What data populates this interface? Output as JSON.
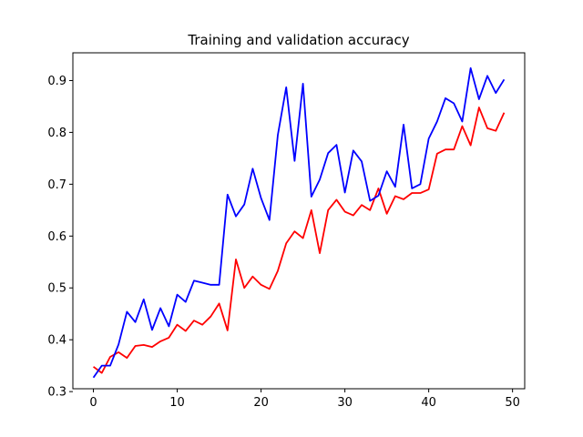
{
  "chart_data": {
    "type": "line",
    "title": "Training and validation accuracy",
    "xlabel": "",
    "ylabel": "",
    "xlim": [
      -2.45,
      51.45
    ],
    "ylim": [
      0.3055,
      0.9535
    ],
    "xticks": [
      0,
      10,
      20,
      30,
      40,
      50
    ],
    "yticks": [
      0.3,
      0.4,
      0.5,
      0.6,
      0.7,
      0.8,
      0.9
    ],
    "ytick_labels": [
      "0.3",
      "0.4",
      "0.5",
      "0.6",
      "0.7",
      "0.8",
      "0.9"
    ],
    "grid": false,
    "x": [
      0,
      1,
      2,
      3,
      4,
      5,
      6,
      7,
      8,
      9,
      10,
      11,
      12,
      13,
      14,
      15,
      16,
      17,
      18,
      19,
      20,
      21,
      22,
      23,
      24,
      25,
      26,
      27,
      28,
      29,
      30,
      31,
      32,
      33,
      34,
      35,
      36,
      37,
      38,
      39,
      40,
      41,
      42,
      43,
      44,
      45,
      46,
      47,
      48,
      49
    ],
    "series": [
      {
        "color": "#ff0000",
        "values": [
          0.348,
          0.336,
          0.367,
          0.376,
          0.365,
          0.388,
          0.39,
          0.386,
          0.397,
          0.404,
          0.429,
          0.417,
          0.437,
          0.429,
          0.445,
          0.47,
          0.418,
          0.555,
          0.5,
          0.522,
          0.506,
          0.498,
          0.533,
          0.586,
          0.609,
          0.596,
          0.65,
          0.567,
          0.65,
          0.67,
          0.647,
          0.64,
          0.66,
          0.65,
          0.692,
          0.643,
          0.677,
          0.671,
          0.683,
          0.683,
          0.69,
          0.759,
          0.767,
          0.767,
          0.812,
          0.775,
          0.848,
          0.808,
          0.803,
          0.838
        ]
      },
      {
        "color": "#0000ff",
        "values": [
          0.327,
          0.35,
          0.35,
          0.391,
          0.454,
          0.434,
          0.478,
          0.419,
          0.461,
          0.426,
          0.487,
          0.473,
          0.514,
          0.51,
          0.506,
          0.506,
          0.68,
          0.638,
          0.661,
          0.73,
          0.673,
          0.631,
          0.795,
          0.887,
          0.745,
          0.894,
          0.676,
          0.709,
          0.76,
          0.776,
          0.684,
          0.765,
          0.744,
          0.668,
          0.678,
          0.725,
          0.695,
          0.815,
          0.692,
          0.7,
          0.788,
          0.821,
          0.866,
          0.856,
          0.821,
          0.924,
          0.864,
          0.909,
          0.876,
          0.902
        ]
      }
    ]
  }
}
